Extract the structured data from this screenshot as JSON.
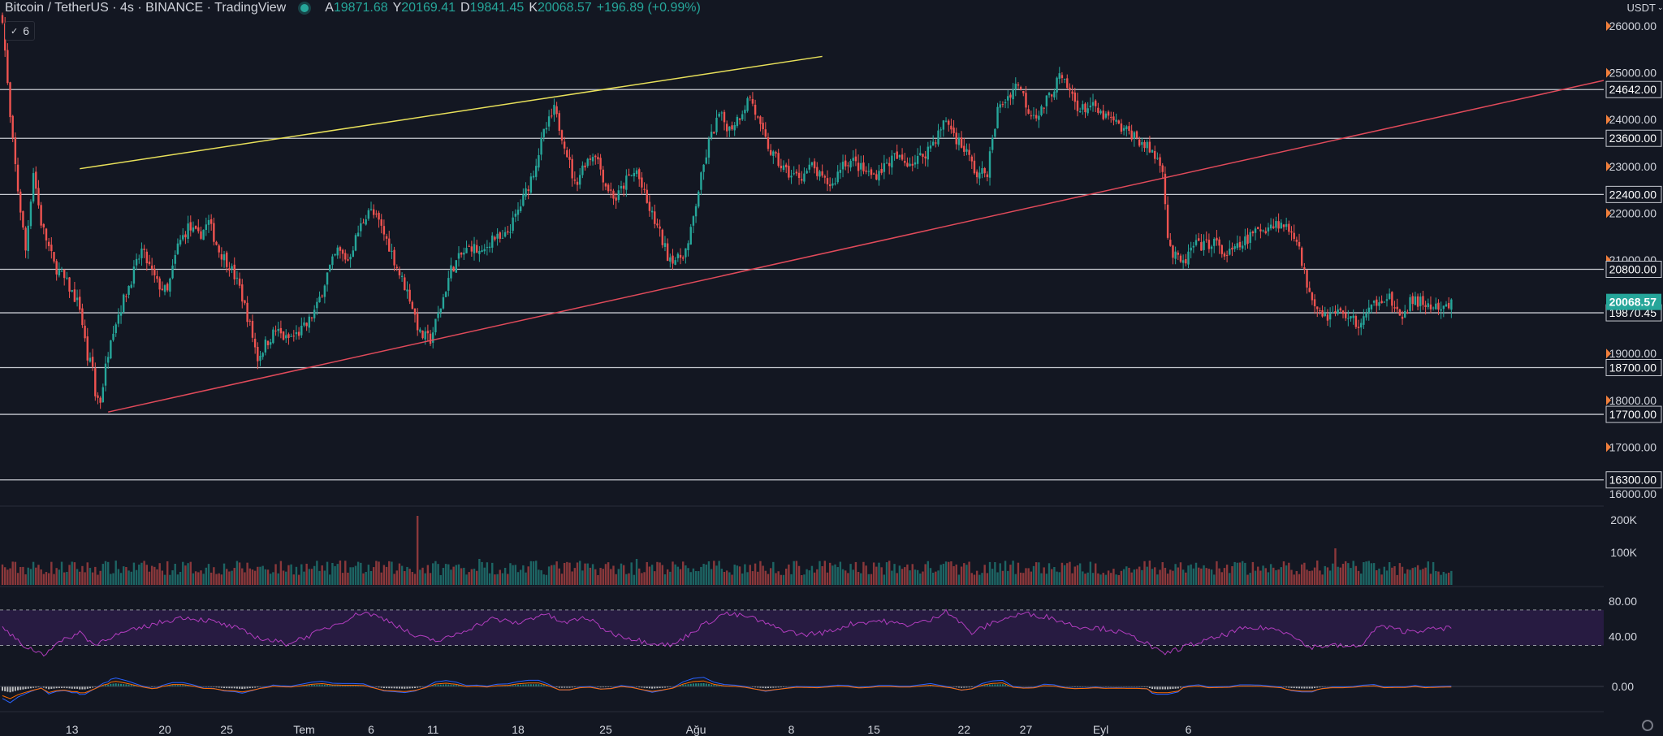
{
  "header": {
    "symbol": "Bitcoin / TetherUS · 4s · BINANCE · TradingView",
    "open_label": "A",
    "open": "19871.68",
    "high_label": "Y",
    "high": "20169.41",
    "low_label": "D",
    "low": "19841.45",
    "close_label": "K",
    "close": "20068.57",
    "change": "+196.89 (+0.99%)"
  },
  "indicator_toggle": "6",
  "currency": "USDT",
  "colors": {
    "up": "#26a69a",
    "down": "#ef5350",
    "bg": "#131722",
    "yellow": "#e8e05a",
    "red": "#e04a5a",
    "rsi": "#b23dbf"
  },
  "chart_data": {
    "type": "candlestick",
    "x_tick_labels": [
      "13",
      "20",
      "25",
      "Tem",
      "6",
      "11",
      "18",
      "25",
      "Ağu",
      "8",
      "15",
      "22",
      "27",
      "Eyl",
      "6"
    ],
    "price_axis": {
      "ylim": [
        16000,
        26300
      ],
      "ticks": [
        "26000.00",
        "25000.00",
        "24000.00",
        "23000.00",
        "22000.00",
        "21000.00",
        "20000.00",
        "19000.00",
        "18000.00",
        "17000.00",
        "16000.00"
      ]
    },
    "horizontal_levels": [
      24642,
      23600,
      22400,
      20800,
      19870.45,
      18700,
      17700,
      16300
    ],
    "level_labels": [
      "24642.00",
      "23600.00",
      "22400.00",
      "20800.00",
      "19870.45",
      "18700.00",
      "17700.00",
      "16300.00"
    ],
    "last_price": "20068.57",
    "trendlines": [
      {
        "color": "yellow",
        "from": {
          "bar": 30,
          "price": 22950
        },
        "to": {
          "bar": 318,
          "price": 25350
        }
      },
      {
        "color": "red",
        "from": {
          "bar": 41,
          "price": 17750
        },
        "to": {
          "bar": 393,
          "price": 22050
        }
      }
    ],
    "price_path": [
      [
        0,
        26200
      ],
      [
        3,
        24000
      ],
      [
        6,
        22500
      ],
      [
        9,
        21200
      ],
      [
        12,
        22900
      ],
      [
        15,
        21800
      ],
      [
        20,
        20900
      ],
      [
        25,
        20500
      ],
      [
        30,
        20000
      ],
      [
        33,
        18900
      ],
      [
        35,
        18700
      ],
      [
        36,
        18100
      ],
      [
        38,
        18000
      ],
      [
        42,
        19400
      ],
      [
        48,
        20300
      ],
      [
        54,
        21200
      ],
      [
        60,
        20500
      ],
      [
        64,
        20300
      ],
      [
        68,
        21300
      ],
      [
        72,
        21700
      ],
      [
        76,
        21500
      ],
      [
        80,
        21800
      ],
      [
        84,
        21200
      ],
      [
        88,
        20900
      ],
      [
        92,
        20400
      ],
      [
        96,
        19600
      ],
      [
        99,
        18900
      ],
      [
        102,
        19200
      ],
      [
        106,
        19500
      ],
      [
        110,
        19300
      ],
      [
        114,
        19400
      ],
      [
        118,
        19600
      ],
      [
        122,
        20000
      ],
      [
        126,
        20700
      ],
      [
        130,
        21200
      ],
      [
        134,
        21000
      ],
      [
        138,
        21600
      ],
      [
        142,
        22100
      ],
      [
        146,
        21800
      ],
      [
        150,
        21300
      ],
      [
        154,
        20700
      ],
      [
        158,
        20200
      ],
      [
        162,
        19400
      ],
      [
        166,
        19300
      ],
      [
        170,
        20000
      ],
      [
        174,
        20800
      ],
      [
        178,
        21100
      ],
      [
        182,
        21300
      ],
      [
        186,
        21100
      ],
      [
        190,
        21500
      ],
      [
        194,
        21400
      ],
      [
        198,
        21800
      ],
      [
        202,
        22300
      ],
      [
        206,
        22900
      ],
      [
        210,
        23700
      ],
      [
        214,
        24200
      ],
      [
        218,
        23500
      ],
      [
        222,
        22600
      ],
      [
        226,
        23100
      ],
      [
        230,
        23300
      ],
      [
        234,
        22600
      ],
      [
        238,
        22300
      ],
      [
        242,
        22700
      ],
      [
        246,
        22900
      ],
      [
        250,
        22200
      ],
      [
        254,
        21700
      ],
      [
        258,
        21100
      ],
      [
        262,
        21000
      ],
      [
        266,
        21300
      ],
      [
        270,
        22500
      ],
      [
        274,
        23500
      ],
      [
        278,
        24100
      ],
      [
        282,
        23800
      ],
      [
        286,
        24100
      ],
      [
        290,
        24500
      ],
      [
        294,
        23800
      ],
      [
        298,
        23300
      ],
      [
        302,
        23000
      ],
      [
        306,
        22800
      ],
      [
        310,
        22800
      ],
      [
        314,
        23000
      ],
      [
        318,
        22700
      ],
      [
        322,
        22600
      ],
      [
        326,
        23100
      ],
      [
        330,
        23100
      ],
      [
        334,
        22900
      ],
      [
        338,
        22800
      ],
      [
        342,
        23000
      ],
      [
        346,
        23200
      ],
      [
        350,
        23100
      ],
      [
        354,
        23100
      ],
      [
        358,
        23300
      ],
      [
        362,
        23600
      ],
      [
        366,
        24000
      ],
      [
        370,
        23600
      ],
      [
        374,
        23300
      ],
      [
        378,
        22800
      ],
      [
        382,
        22900
      ],
      [
        386,
        24200
      ],
      [
        390,
        24500
      ],
      [
        394,
        24800
      ],
      [
        398,
        24200
      ],
      [
        402,
        24100
      ],
      [
        406,
        24500
      ],
      [
        410,
        24900
      ],
      [
        414,
        24600
      ],
      [
        418,
        24200
      ],
      [
        422,
        24300
      ],
      [
        426,
        24100
      ],
      [
        430,
        24000
      ],
      [
        434,
        23800
      ],
      [
        438,
        23700
      ],
      [
        442,
        23500
      ],
      [
        446,
        23300
      ],
      [
        450,
        23000
      ],
      [
        452,
        21500
      ],
      [
        454,
        21100
      ],
      [
        458,
        20900
      ],
      [
        462,
        21300
      ],
      [
        466,
        21300
      ],
      [
        470,
        21400
      ],
      [
        474,
        21100
      ],
      [
        478,
        21200
      ],
      [
        482,
        21400
      ],
      [
        486,
        21600
      ],
      [
        490,
        21700
      ],
      [
        494,
        21800
      ],
      [
        498,
        21700
      ],
      [
        502,
        21500
      ],
      [
        504,
        20900
      ],
      [
        506,
        20500
      ],
      [
        510,
        20000
      ],
      [
        514,
        19800
      ],
      [
        518,
        19900
      ],
      [
        522,
        19800
      ],
      [
        526,
        19600
      ],
      [
        530,
        19900
      ],
      [
        534,
        20200
      ],
      [
        538,
        20200
      ],
      [
        542,
        19700
      ],
      [
        546,
        20100
      ],
      [
        550,
        20100
      ],
      [
        554,
        20000
      ],
      [
        558,
        19900
      ],
      [
        562,
        20070
      ]
    ],
    "volume_axis": {
      "ticks": [
        "200K",
        "100K"
      ]
    },
    "rsi": {
      "ticks": [
        "80.00",
        "40.00"
      ],
      "upper": 70,
      "lower": 30,
      "path": [
        [
          0,
          50
        ],
        [
          4,
          40
        ],
        [
          8,
          30
        ],
        [
          12,
          25
        ],
        [
          16,
          20
        ],
        [
          20,
          30
        ],
        [
          30,
          45
        ],
        [
          36,
          30
        ],
        [
          40,
          38
        ],
        [
          60,
          55
        ],
        [
          70,
          62
        ],
        [
          80,
          58
        ],
        [
          90,
          50
        ],
        [
          100,
          38
        ],
        [
          110,
          32
        ],
        [
          120,
          42
        ],
        [
          130,
          55
        ],
        [
          140,
          68
        ],
        [
          150,
          58
        ],
        [
          160,
          40
        ],
        [
          170,
          35
        ],
        [
          180,
          48
        ],
        [
          190,
          60
        ],
        [
          200,
          55
        ],
        [
          210,
          66
        ],
        [
          218,
          55
        ],
        [
          226,
          62
        ],
        [
          236,
          44
        ],
        [
          248,
          35
        ],
        [
          260,
          30
        ],
        [
          270,
          50
        ],
        [
          280,
          66
        ],
        [
          290,
          62
        ],
        [
          300,
          50
        ],
        [
          310,
          42
        ],
        [
          320,
          45
        ],
        [
          330,
          55
        ],
        [
          340,
          58
        ],
        [
          350,
          53
        ],
        [
          360,
          58
        ],
        [
          366,
          70
        ],
        [
          376,
          44
        ],
        [
          386,
          58
        ],
        [
          396,
          66
        ],
        [
          406,
          62
        ],
        [
          416,
          52
        ],
        [
          430,
          48
        ],
        [
          442,
          36
        ],
        [
          450,
          20
        ],
        [
          460,
          30
        ],
        [
          470,
          38
        ],
        [
          480,
          48
        ],
        [
          490,
          50
        ],
        [
          500,
          44
        ],
        [
          506,
          28
        ],
        [
          516,
          30
        ],
        [
          526,
          28
        ],
        [
          534,
          52
        ],
        [
          544,
          46
        ],
        [
          554,
          48
        ],
        [
          562,
          50
        ]
      ]
    },
    "macd": {
      "ticks": [
        "0.00"
      ]
    }
  }
}
